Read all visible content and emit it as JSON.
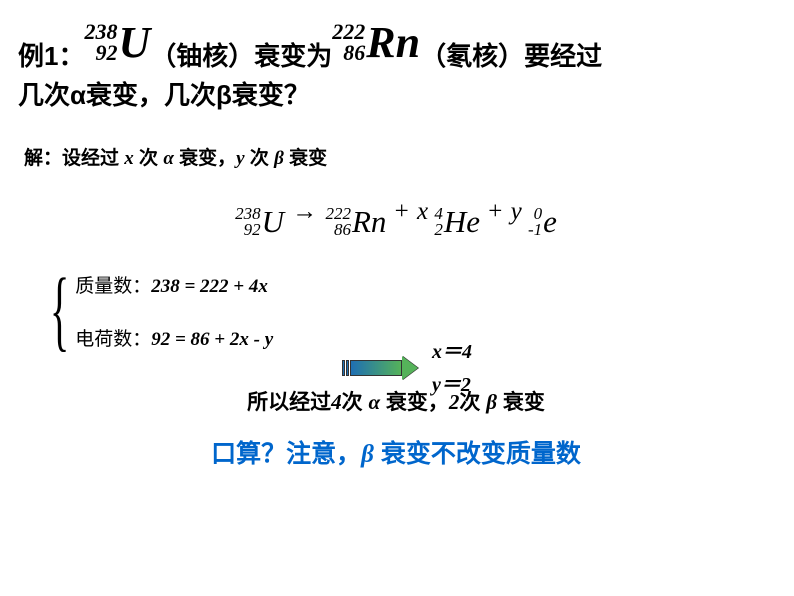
{
  "question": {
    "prefix": "例1：",
    "u": {
      "mass": "238",
      "z": "92",
      "sym": "U"
    },
    "mid1": "（铀核）衰变为",
    "rn": {
      "mass": "222",
      "z": "86",
      "sym": "Rn"
    },
    "mid2": "（氡核）要经过",
    "line2": "几次α衰变，几次β衰变？"
  },
  "solution_setup": {
    "p1": "解：设经过 ",
    "x": "x",
    "p2": " 次 ",
    "alpha": "α",
    "p3": " 衰变，",
    "y": "y",
    "p4": " 次 ",
    "beta": "β",
    "p5": " 衰变"
  },
  "equation": {
    "u": {
      "mass": "238",
      "z": "92",
      "sym": "U"
    },
    "rn": {
      "mass": "222",
      "z": "86",
      "sym": "Rn"
    },
    "he": {
      "mass": "4",
      "z": "2",
      "sym": "He"
    },
    "e": {
      "mass": "0",
      "z": "-1",
      "sym": "e"
    },
    "arrow": "→",
    "plus": "+",
    "x": "x",
    "y": "y"
  },
  "system": {
    "mass_label": "质量数：",
    "mass_eq": "238 = 222 + 4x",
    "charge_label": "电荷数：",
    "charge_eq": "92 = 86 + 2x - y"
  },
  "answers": {
    "x": "x＝4",
    "y": "y＝2"
  },
  "conclusion": {
    "p1": "所以经过",
    "n1": "4",
    "p2": "次 ",
    "alpha": "α",
    "p3": " 衰变，",
    "n2": "2",
    "p4": "次 ",
    "beta": "β",
    "p5": " 衰变"
  },
  "tip": {
    "p1": "口算？注意，",
    "beta": "β",
    "p2": " 衰变不改变质量数"
  },
  "colors": {
    "tip_color": "#0066cc"
  }
}
